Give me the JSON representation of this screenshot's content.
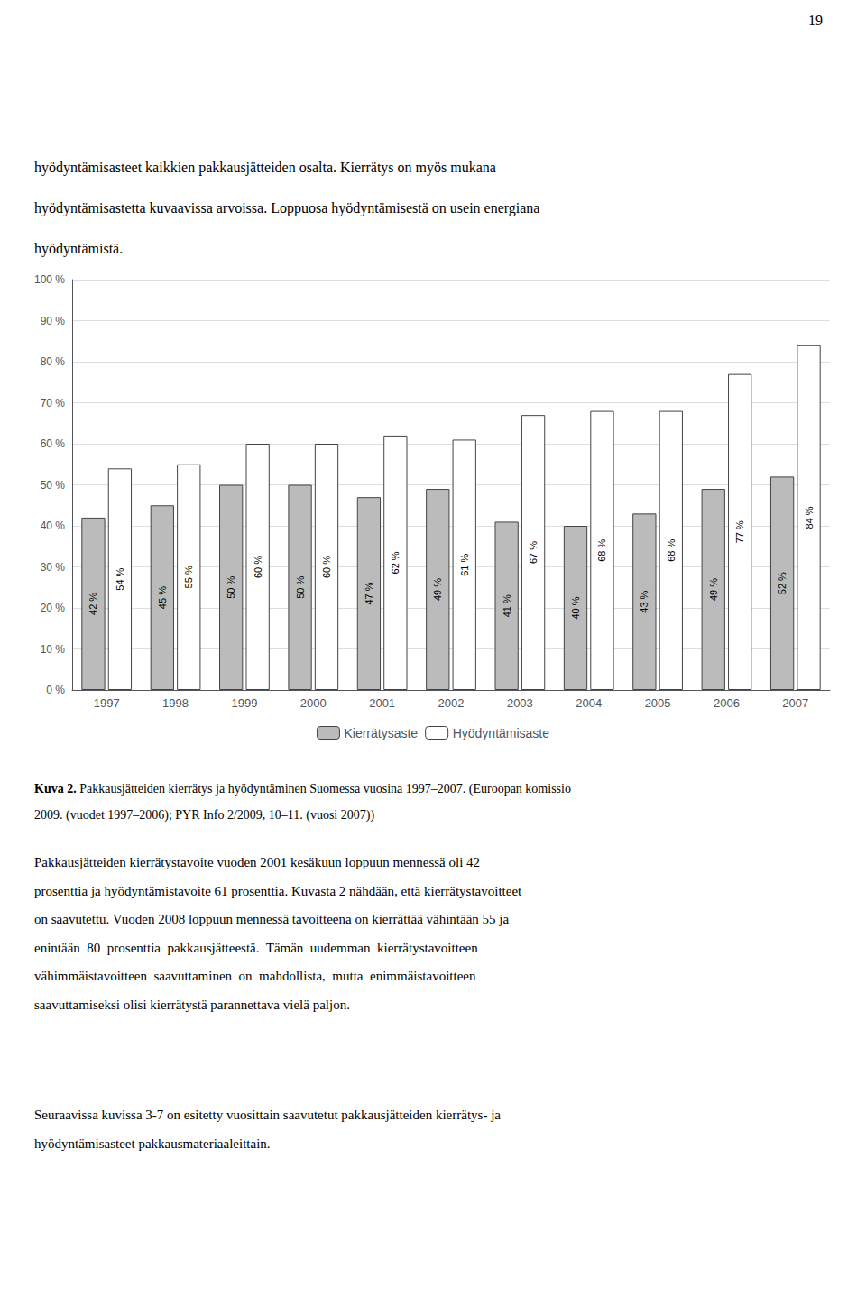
{
  "page_number": "19",
  "header_lines": [
    "hyödyntämisasteet kaikkien pakkausjätteiden osalta. Kierrätys on myös mukana",
    "hyödyntämisastetta kuvaavissa arvoissa. Loppuosa hyödyntämisestä on usein energiana",
    "hyödyntämistä."
  ],
  "caption": {
    "bold": "Kuva 2.",
    "line1_rest": " Pakkausjätteiden kierrätys ja hyödyntäminen Suomessa vuosina 1997–2007. (Euroopan komissio",
    "line2": "2009. (vuodet 1997–2006); PYR Info 2/2009, 10–11. (vuosi 2007))"
  },
  "body_paragraphs": [
    [
      "Pakkausjätteiden kierrätystavoite vuoden 2001 kesäkuun loppuun mennessä oli 42",
      "prosenttia ja hyödyntämistavoite 61 prosenttia. Kuvasta 2 nähdään, että kierrätystavoitteet",
      "on saavutettu. Vuoden 2008 loppuun mennessä tavoitteena on kierrättää vähintään 55 ja",
      "enintään  80  prosenttia  pakkausjätteestä.  Tämän  uudemman  kierrätystavoitteen",
      "vähimmäistavoitteen  saavuttaminen  on  mahdollista,  mutta  enimmäistavoitteen",
      "saavuttamiseksi olisi kierrätystä parannettava vielä paljon."
    ],
    [
      "Seuraavissa kuvissa 3-7 on esitetty vuosittain saavutetut pakkausjätteiden kierrätys- ja",
      "hyödyntämisasteet pakkausmateriaaleittain."
    ]
  ],
  "chart_data": {
    "type": "bar",
    "categories": [
      "1997",
      "1998",
      "1999",
      "2000",
      "2001",
      "2002",
      "2003",
      "2004",
      "2005",
      "2006",
      "2007"
    ],
    "series": [
      {
        "name": "Kierrätysaste",
        "color": "#bbbbbb",
        "values": [
          42,
          45,
          50,
          50,
          47,
          49,
          41,
          40,
          43,
          49,
          52
        ],
        "value_labels": [
          "42 %",
          "45 %",
          "50 %",
          "50 %",
          "47 %",
          "49 %",
          "41 %",
          "40 %",
          "43 %",
          "49 %",
          "52 %"
        ]
      },
      {
        "name": "Hyödyntämisaste",
        "color": "#ffffff",
        "values": [
          54,
          55,
          60,
          60,
          62,
          61,
          67,
          68,
          68,
          77,
          84
        ],
        "value_labels": [
          "54 %",
          "55 %",
          "60 %",
          "60 %",
          "62 %",
          "61 %",
          "67 %",
          "68 %",
          "68 %",
          "77 %",
          "84 %"
        ]
      }
    ],
    "ylim": [
      0,
      100
    ],
    "yticks": [
      {
        "value": 0,
        "label": "0 %"
      },
      {
        "value": 10,
        "label": "10 %"
      },
      {
        "value": 20,
        "label": "20 %"
      },
      {
        "value": 30,
        "label": "30 %"
      },
      {
        "value": 40,
        "label": "40 %"
      },
      {
        "value": 50,
        "label": "50 %"
      },
      {
        "value": 60,
        "label": "60 %"
      },
      {
        "value": 70,
        "label": "70 %"
      },
      {
        "value": 80,
        "label": "80 %"
      },
      {
        "value": 90,
        "label": "90 %"
      },
      {
        "value": 100,
        "label": "100 %"
      }
    ],
    "grid": true,
    "legend": "bottom",
    "data_labels": true
  }
}
